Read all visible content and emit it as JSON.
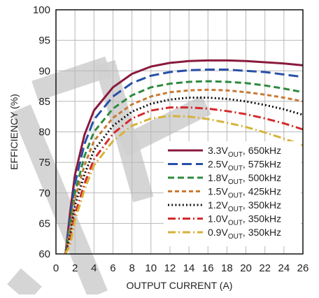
{
  "chart_data": {
    "type": "line",
    "title": "",
    "xlabel": "OUTPUT CURRENT (A)",
    "ylabel": "EFFICIENCY (%)",
    "xlim": [
      0,
      26
    ],
    "ylim": [
      60,
      100
    ],
    "xticks": [
      "0",
      "2",
      "4",
      "6",
      "8",
      "10",
      "12",
      "14",
      "16",
      "18",
      "20",
      "22",
      "24",
      "26"
    ],
    "yticks": [
      "60",
      "65",
      "70",
      "75",
      "80",
      "85",
      "90",
      "95",
      "100"
    ],
    "grid": true,
    "legend_position": "bottom-right",
    "x": [
      1.0,
      1.5,
      2,
      3,
      4,
      6,
      8,
      10,
      12,
      14,
      16,
      18,
      20,
      22,
      24,
      26
    ],
    "series": [
      {
        "name": "3.3V",
        "name_sub": "OUT",
        "name_suffix": ", 650kHz",
        "color": "#8a1a3c",
        "dash": "solid",
        "values": [
          60.0,
          67.0,
          73.0,
          79.5,
          83.5,
          87.3,
          89.5,
          90.7,
          91.3,
          91.6,
          91.7,
          91.7,
          91.6,
          91.4,
          91.2,
          90.9
        ]
      },
      {
        "name": "2.5V",
        "name_sub": "OUT",
        "name_suffix": ", 575kHz",
        "color": "#2850a8",
        "dash": "long-dash",
        "values": [
          60.0,
          66.0,
          71.5,
          78.0,
          82.0,
          85.8,
          88.0,
          89.2,
          89.8,
          90.1,
          90.2,
          90.2,
          90.0,
          89.8,
          89.4,
          89.0
        ]
      },
      {
        "name": "1.8V",
        "name_sub": "OUT",
        "name_suffix": ", 500kHz",
        "color": "#2e8a3e",
        "dash": "dash",
        "values": [
          60.0,
          65.0,
          70.0,
          76.0,
          80.0,
          83.8,
          86.0,
          87.3,
          87.9,
          88.2,
          88.3,
          88.2,
          88.0,
          87.6,
          87.1,
          86.5
        ]
      },
      {
        "name": "1.5V",
        "name_sub": "OUT",
        "name_suffix": ", 425kHz",
        "color": "#c87a35",
        "dash": "short-dash",
        "values": [
          60.0,
          64.0,
          69.0,
          74.5,
          78.5,
          82.3,
          84.5,
          85.8,
          86.5,
          86.8,
          86.9,
          86.8,
          86.5,
          86.1,
          85.6,
          85.0
        ]
      },
      {
        "name": "1.2V",
        "name_sub": "OUT",
        "name_suffix": ", 350kHz",
        "color": "#111111",
        "dash": "dotted",
        "values": [
          60.0,
          63.0,
          68.0,
          73.0,
          77.0,
          81.0,
          83.3,
          84.6,
          85.3,
          85.6,
          85.6,
          85.4,
          85.0,
          84.4,
          83.7,
          82.8
        ]
      },
      {
        "name": "1.0V",
        "name_sub": "OUT",
        "name_suffix": ", 350kHz",
        "color": "#d42a2a",
        "dash": "dash-dot",
        "values": [
          60.0,
          62.0,
          66.5,
          71.5,
          75.5,
          79.7,
          82.2,
          83.5,
          84.0,
          84.0,
          83.8,
          83.4,
          82.9,
          82.2,
          81.4,
          80.4
        ]
      },
      {
        "name": "0.9V",
        "name_sub": "OUT",
        "name_suffix": ", 350kHz",
        "color": "#d6b23a",
        "dash": "dash-dot",
        "values": [
          60.0,
          61.5,
          65.5,
          70.5,
          74.5,
          78.5,
          81.0,
          82.2,
          82.6,
          82.5,
          82.1,
          81.5,
          80.8,
          79.9,
          78.9,
          77.8
        ]
      }
    ]
  }
}
